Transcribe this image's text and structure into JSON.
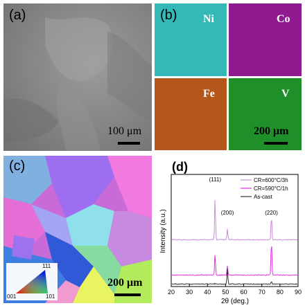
{
  "panel_a": {
    "label": "(a)",
    "scalebar": "100 μm"
  },
  "panel_b": {
    "label": "(b)",
    "scalebar": "200 μm",
    "maps": [
      {
        "element": "Ni",
        "color": "#35b8b8"
      },
      {
        "element": "Co",
        "color": "#8f1a8f"
      },
      {
        "element": "Fe",
        "color": "#b5561a"
      },
      {
        "element": "V",
        "color": "#1f8f2a"
      }
    ]
  },
  "panel_c": {
    "label": "(c)",
    "scalebar": "200 μm",
    "ipf_key": {
      "top": "111",
      "left": "001",
      "right": "101"
    }
  },
  "panel_d": {
    "label": "(d)",
    "chart_data": {
      "type": "line",
      "xlabel": "2θ (deg.)",
      "ylabel": "Intensity (a.u.)",
      "xlim": [
        20,
        90
      ],
      "xticks": [
        20,
        30,
        40,
        50,
        60,
        70,
        80,
        90
      ],
      "series": [
        {
          "name": "CR=600°C/3h",
          "color": "#c78ad6",
          "peaks": [
            {
              "x": 44.2,
              "h": 1.0
            },
            {
              "x": 51.0,
              "h": 0.26
            },
            {
              "x": 75.3,
              "h": 0.58
            }
          ]
        },
        {
          "name": "CR=590°C/1h",
          "color": "#e030e0",
          "peaks": [
            {
              "x": 44.2,
              "h": 0.58
            },
            {
              "x": 51.0,
              "h": 0.25
            },
            {
              "x": 75.3,
              "h": 0.95
            }
          ]
        },
        {
          "name": "As-cast",
          "color": "#333333",
          "peaks": [
            {
              "x": 44.2,
              "h": 0.04
            },
            {
              "x": 51.0,
              "h": 1.0
            },
            {
              "x": 75.3,
              "h": 0.15
            }
          ]
        }
      ],
      "annotations": [
        {
          "text": "(111)",
          "x": 44.2
        },
        {
          "text": "(200)",
          "x": 51.0
        },
        {
          "text": "(220)",
          "x": 75.3
        }
      ]
    }
  }
}
